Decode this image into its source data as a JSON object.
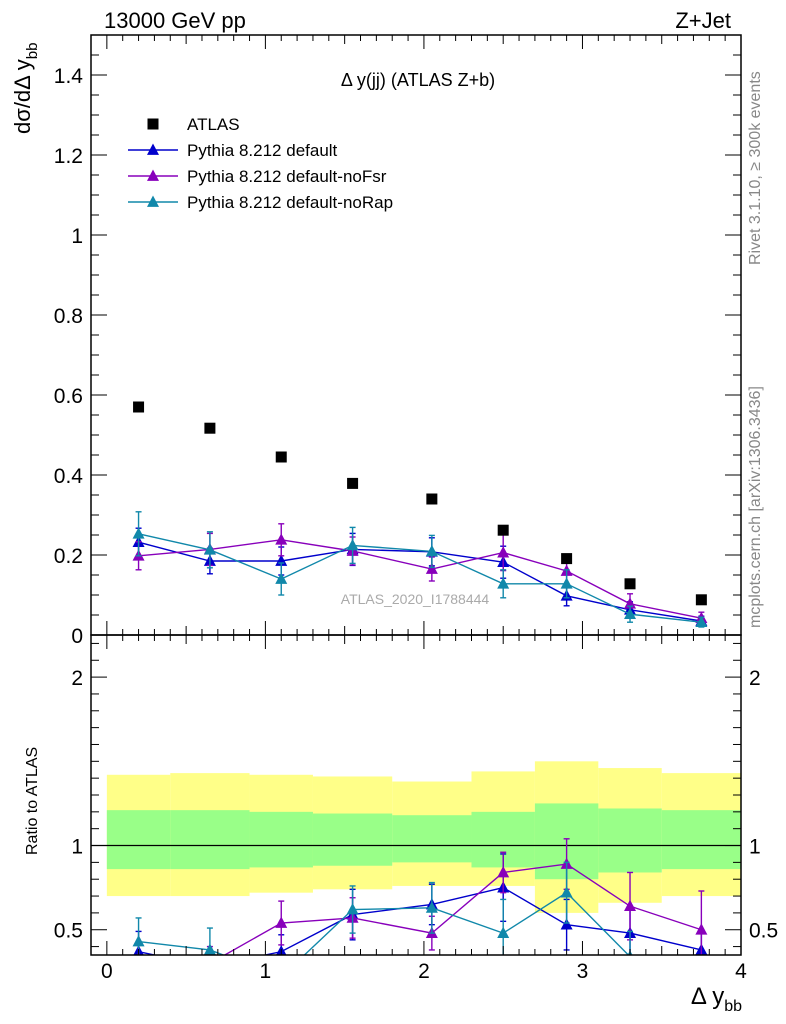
{
  "header": {
    "left": "13000 GeV pp",
    "right": "Z+Jet"
  },
  "side_labels": {
    "rivet": "Rivet 3.1.10, ≥ 300k events",
    "mcplots": "mcplots.cern.ch [arXiv:1306.3436]"
  },
  "chart_data": [
    {
      "type": "scatter",
      "title": "Δ y(jj) (ATLAS Z+b)",
      "ylabel": "dσ/dΔ y_bb",
      "xlabel": "Δ y_bb",
      "watermark": "ATLAS_2020_I1788444",
      "xlim": [
        -0.1,
        4.0
      ],
      "ylim": [
        0,
        1.5
      ],
      "yticks": [
        0,
        0.2,
        0.4,
        0.6,
        0.8,
        1,
        1.2,
        1.4
      ],
      "ytick_labels": [
        "0",
        "0.2",
        "0.4",
        "0.6",
        "0.8",
        "1",
        "1.2",
        "1.4"
      ],
      "legend_position": "top-left",
      "data": {
        "name": "ATLAS",
        "color": "#000000",
        "x": [
          0.2,
          0.65,
          1.1,
          1.55,
          2.05,
          2.5,
          2.9,
          3.3,
          3.75
        ],
        "y": [
          0.57,
          0.517,
          0.445,
          0.379,
          0.34,
          0.262,
          0.191,
          0.128,
          0.088
        ]
      },
      "series": [
        {
          "name": "Pythia 8.212 default",
          "color": "#0000cc",
          "x": [
            0.2,
            0.65,
            1.1,
            1.55,
            2.05,
            2.5,
            2.9,
            3.3,
            3.75
          ],
          "y": [
            0.232,
            0.185,
            0.185,
            0.214,
            0.208,
            0.182,
            0.098,
            0.063,
            0.035
          ],
          "err": [
            0.035,
            0.032,
            0.035,
            0.04,
            0.035,
            0.04,
            0.025,
            0.02,
            0.012
          ]
        },
        {
          "name": "Pythia 8.212 default-noFsr",
          "color": "#8800bb",
          "x": [
            0.2,
            0.65,
            1.1,
            1.55,
            2.05,
            2.5,
            2.9,
            3.3,
            3.75
          ],
          "y": [
            0.198,
            0.214,
            0.238,
            0.21,
            0.165,
            0.206,
            0.16,
            0.078,
            0.042
          ],
          "err": [
            0.035,
            0.04,
            0.04,
            0.035,
            0.03,
            0.045,
            0.035,
            0.025,
            0.015
          ]
        },
        {
          "name": "Pythia 8.212 default-noRap",
          "color": "#1188aa",
          "x": [
            0.2,
            0.65,
            1.1,
            1.55,
            2.05,
            2.5,
            2.9,
            3.3,
            3.75
          ],
          "y": [
            0.253,
            0.213,
            0.14,
            0.224,
            0.209,
            0.128,
            0.128,
            0.052,
            0.032
          ],
          "err": [
            0.055,
            0.045,
            0.04,
            0.045,
            0.04,
            0.035,
            0.035,
            0.02,
            0.012
          ]
        }
      ]
    },
    {
      "type": "line",
      "ylabel": "Ratio to ATLAS",
      "xlabel": "Δ y_bb",
      "xlim": [
        -0.1,
        4.0
      ],
      "ylim": [
        0.35,
        2.25
      ],
      "yticks": [
        0.5,
        1,
        2
      ],
      "ytick_labels": [
        "0.5",
        "1",
        "2"
      ],
      "xticks": [
        0,
        1,
        2,
        3,
        4
      ],
      "xtick_labels": [
        "0",
        "1",
        "2",
        "3",
        "4"
      ],
      "bin_edges": [
        0,
        0.4,
        0.9,
        1.3,
        1.8,
        2.3,
        2.7,
        3.1,
        3.5,
        4.0
      ],
      "band_outer": {
        "color": "#ffff88",
        "lo": [
          0.7,
          0.7,
          0.72,
          0.74,
          0.76,
          0.76,
          0.6,
          0.66,
          0.7
        ],
        "hi": [
          1.42,
          1.43,
          1.42,
          1.41,
          1.38,
          1.44,
          1.5,
          1.46,
          1.43
        ]
      },
      "band_inner": {
        "color": "#99ff88",
        "lo": [
          0.86,
          0.86,
          0.87,
          0.88,
          0.9,
          0.87,
          0.8,
          0.84,
          0.86
        ],
        "hi": [
          1.21,
          1.21,
          1.2,
          1.19,
          1.18,
          1.2,
          1.25,
          1.22,
          1.21
        ]
      },
      "series": [
        {
          "name": "Pythia 8.212 default",
          "color": "#0000cc",
          "x": [
            0.2,
            0.65,
            1.1,
            1.55,
            2.05,
            2.5,
            2.9,
            3.3,
            3.75
          ],
          "y": [
            0.37,
            0.28,
            0.37,
            0.59,
            0.65,
            0.75,
            0.53,
            0.48,
            0.38
          ],
          "err": [
            0.12,
            0.1,
            0.1,
            0.15,
            0.12,
            0.2,
            0.15,
            0.15,
            0.1
          ]
        },
        {
          "name": "Pythia 8.212 default-noFsr",
          "color": "#8800bb",
          "x": [
            0.2,
            0.65,
            1.1,
            1.55,
            2.05,
            2.5,
            2.9,
            3.3,
            3.75
          ],
          "y": [
            0.33,
            0.3,
            0.54,
            0.57,
            0.48,
            0.84,
            0.89,
            0.64,
            0.5
          ],
          "err": [
            0.1,
            0.1,
            0.13,
            0.12,
            0.1,
            0.12,
            0.15,
            0.2,
            0.23
          ]
        },
        {
          "name": "Pythia 8.212 default-noRap",
          "color": "#1188aa",
          "x": [
            0.2,
            0.65,
            1.1,
            1.55,
            2.05,
            2.5,
            2.9,
            3.3,
            3.75
          ],
          "y": [
            0.43,
            0.38,
            0.22,
            0.62,
            0.63,
            0.48,
            0.72,
            0.34,
            0.2
          ],
          "err": [
            0.14,
            0.13,
            0.12,
            0.14,
            0.15,
            0.2,
            0.18,
            0.15,
            0.1
          ]
        }
      ]
    }
  ]
}
